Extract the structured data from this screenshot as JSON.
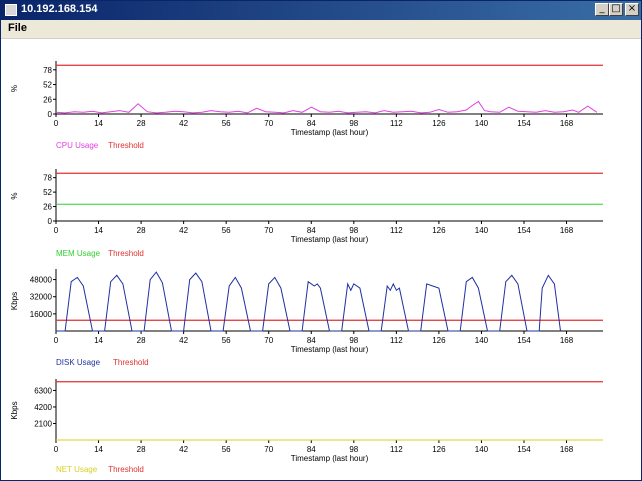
{
  "window": {
    "title": "10.192.168.154",
    "controls": {
      "minimize": "_",
      "maximize": "□",
      "close": "×"
    }
  },
  "menu": {
    "file": "File"
  },
  "chart_data": [
    {
      "type": "line",
      "ylabel": "%",
      "xlabel": "Timestamp (last hour)",
      "ylim": [
        0,
        90
      ],
      "yticks": [
        0,
        26,
        52,
        78
      ],
      "xlim": [
        0,
        180
      ],
      "xticks": [
        0,
        14,
        28,
        42,
        56,
        70,
        84,
        98,
        112,
        126,
        140,
        154,
        168
      ],
      "legend": [
        {
          "label": "CPU Usage",
          "color": "#e040e0"
        },
        {
          "label": "Threshold",
          "color": "#e03030"
        }
      ],
      "threshold": 86,
      "series": [
        {
          "name": "CPU Usage",
          "color": "#e040e0",
          "x": [
            0,
            3,
            6,
            9,
            12,
            15,
            18,
            21,
            24,
            27,
            30,
            33,
            36,
            39,
            42,
            45,
            48,
            51,
            54,
            57,
            60,
            63,
            66,
            69,
            72,
            75,
            78,
            81,
            84,
            87,
            90,
            93,
            96,
            99,
            102,
            105,
            108,
            111,
            114,
            117,
            120,
            123,
            126,
            129,
            132,
            135,
            137,
            139,
            141,
            143,
            146,
            149,
            152,
            155,
            158,
            161,
            164,
            167,
            170,
            172,
            175,
            178
          ],
          "y": [
            3,
            2,
            4,
            3,
            5,
            2,
            4,
            6,
            3,
            18,
            4,
            2,
            3,
            5,
            4,
            2,
            3,
            6,
            4,
            3,
            5,
            2,
            10,
            4,
            3,
            2,
            6,
            3,
            12,
            4,
            3,
            5,
            2,
            3,
            4,
            2,
            6,
            3,
            4,
            5,
            2,
            3,
            8,
            3,
            4,
            7,
            15,
            22,
            6,
            4,
            3,
            12,
            5,
            4,
            3,
            6,
            3,
            4,
            7,
            3,
            14,
            3
          ]
        }
      ]
    },
    {
      "type": "line",
      "ylabel": "%",
      "xlabel": "Timestamp (last hour)",
      "ylim": [
        0,
        90
      ],
      "yticks": [
        0,
        26,
        52,
        78
      ],
      "xlim": [
        0,
        180
      ],
      "xticks": [
        0,
        14,
        28,
        42,
        56,
        70,
        84,
        98,
        112,
        126,
        140,
        154,
        168
      ],
      "legend": [
        {
          "label": "MEM Usage",
          "color": "#30d030"
        },
        {
          "label": "Threshold",
          "color": "#e03030"
        }
      ],
      "threshold": 86,
      "series": [
        {
          "name": "MEM Usage",
          "color": "#30d030",
          "x": [
            0,
            180
          ],
          "y": [
            30,
            30
          ]
        }
      ]
    },
    {
      "type": "line",
      "ylabel": "Kbps",
      "xlabel": "Timestamp (last hour)",
      "ylim": [
        0,
        56000
      ],
      "yticks": [
        16000,
        32000,
        48000
      ],
      "xlim": [
        0,
        180
      ],
      "xticks": [
        0,
        14,
        28,
        42,
        56,
        70,
        84,
        98,
        112,
        126,
        140,
        154,
        168
      ],
      "legend": [
        {
          "label": "DISK Usage",
          "color": "#2030a0"
        },
        {
          "label": "Threshold",
          "color": "#e03030"
        }
      ],
      "threshold": 10000,
      "series": [
        {
          "name": "DISK Usage",
          "color": "#2030a0",
          "x": [
            0,
            3,
            5,
            7,
            9,
            12,
            16,
            18,
            20,
            22,
            25,
            29,
            31,
            33,
            35,
            38,
            42,
            44,
            46,
            48,
            51,
            55,
            57,
            59,
            61,
            64,
            68,
            70,
            72,
            74,
            77,
            81,
            83,
            85,
            86,
            87,
            90,
            94,
            96,
            97,
            98,
            100,
            103,
            107,
            109,
            110,
            111,
            112,
            113,
            116,
            120,
            122,
            124,
            126,
            129,
            133,
            135,
            137,
            139,
            142,
            146,
            148,
            150,
            152,
            155,
            159,
            160,
            162,
            164,
            166
          ],
          "y": [
            0,
            0,
            46000,
            50000,
            42000,
            0,
            0,
            46000,
            52000,
            44000,
            0,
            0,
            48000,
            55000,
            45000,
            0,
            0,
            48000,
            54000,
            46000,
            0,
            0,
            42000,
            50000,
            40000,
            0,
            0,
            44000,
            50000,
            40000,
            0,
            0,
            46000,
            42000,
            44000,
            40000,
            0,
            0,
            44000,
            38000,
            44000,
            40000,
            0,
            0,
            42000,
            38000,
            44000,
            38000,
            40000,
            0,
            0,
            44000,
            42000,
            40000,
            0,
            0,
            46000,
            50000,
            40000,
            0,
            0,
            46000,
            52000,
            44000,
            0,
            0,
            40000,
            52000,
            44000,
            0
          ]
        }
      ]
    },
    {
      "type": "line",
      "ylabel": "Kbps",
      "xlabel": "Timestamp (last hour)",
      "ylim": [
        0,
        7500
      ],
      "yticks": [
        2100,
        4200,
        6300
      ],
      "xlim": [
        0,
        180
      ],
      "xticks": [
        0,
        14,
        28,
        42,
        56,
        70,
        84,
        98,
        112,
        126,
        140,
        154,
        168
      ],
      "legend": [
        {
          "label": "NET Usage",
          "color": "#d8d020"
        },
        {
          "label": "Threshold",
          "color": "#e03030"
        }
      ],
      "threshold": 7400,
      "series": [
        {
          "name": "NET Usage",
          "color": "#d8d020",
          "x": [
            0,
            180
          ],
          "y": [
            0,
            0
          ]
        }
      ]
    }
  ]
}
